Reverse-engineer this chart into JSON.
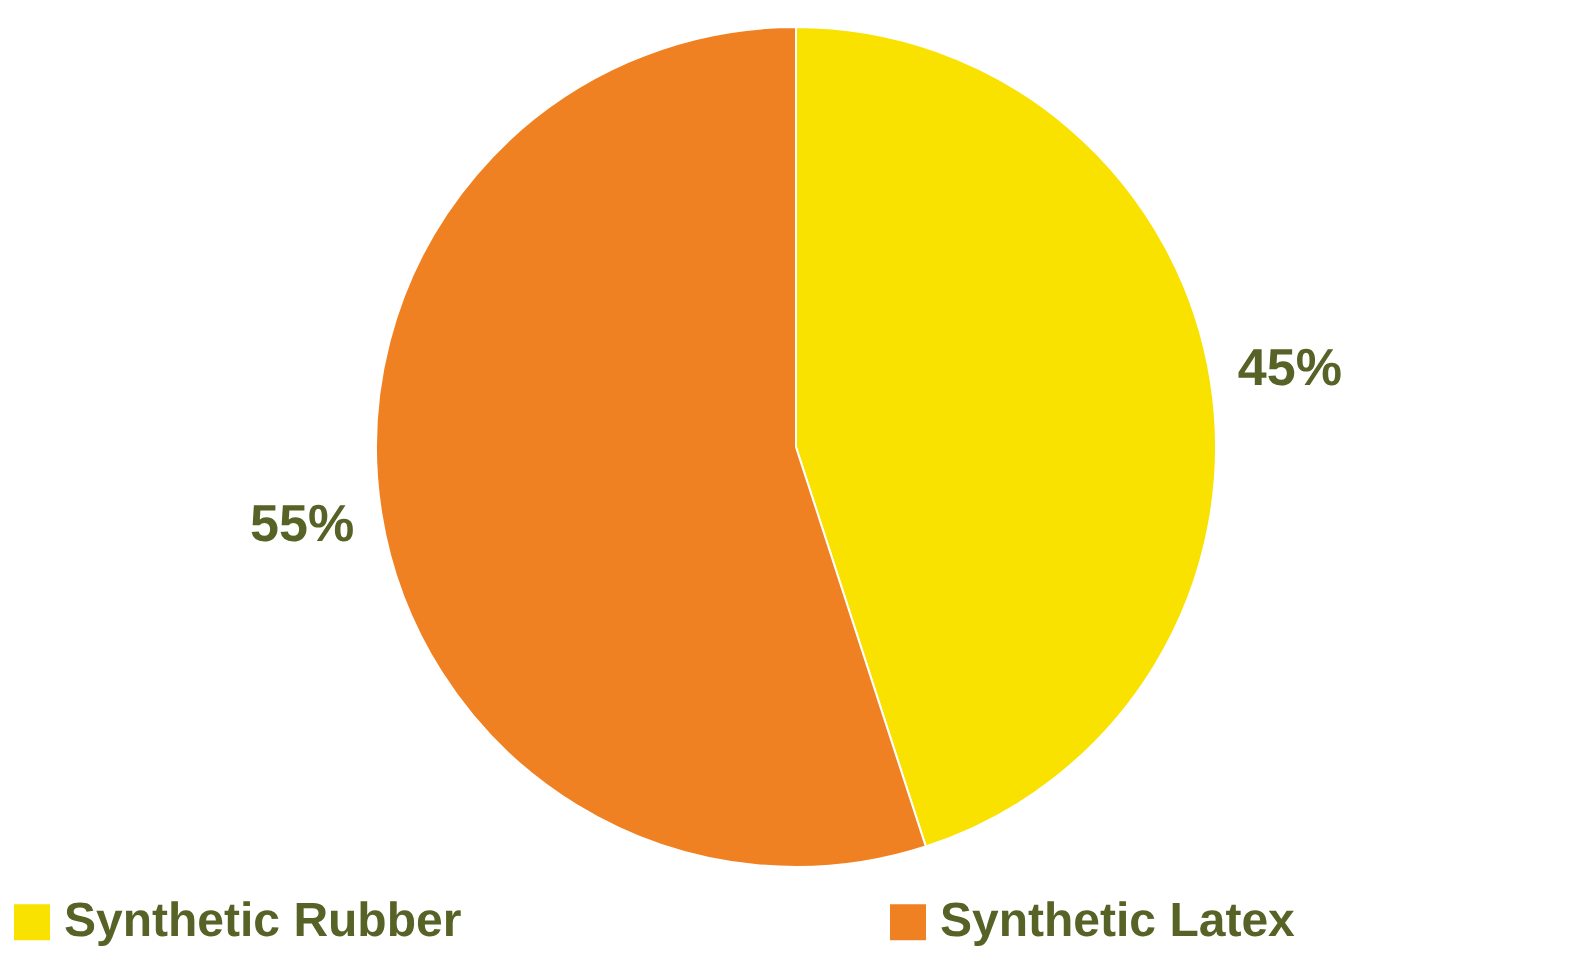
{
  "chart_data": {
    "type": "pie",
    "categories": [
      "Synthetic Rubber",
      "Synthetic Latex"
    ],
    "values": [
      45,
      55
    ],
    "colors": [
      "#f9e100",
      "#f08122"
    ],
    "value_labels": [
      "45%",
      "55%"
    ],
    "legend": "bottom"
  }
}
